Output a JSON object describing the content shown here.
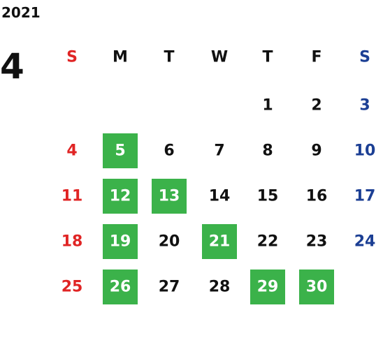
{
  "year": "2021",
  "month": "4",
  "weekdays": [
    "S",
    "M",
    "T",
    "W",
    "T",
    "F",
    "S"
  ],
  "colors": {
    "sunday": "#e02424",
    "saturday": "#1c3f94",
    "weekday": "#111111",
    "highlight": "#3bb24a",
    "highlight_text": "#ffffff"
  },
  "weeks": [
    [
      null,
      null,
      null,
      null,
      {
        "day": 1,
        "highlight": false
      },
      {
        "day": 2,
        "highlight": false
      },
      {
        "day": 3,
        "highlight": false
      }
    ],
    [
      {
        "day": 4,
        "highlight": false
      },
      {
        "day": 5,
        "highlight": true
      },
      {
        "day": 6,
        "highlight": false
      },
      {
        "day": 7,
        "highlight": false
      },
      {
        "day": 8,
        "highlight": false
      },
      {
        "day": 9,
        "highlight": false
      },
      {
        "day": 10,
        "highlight": false
      }
    ],
    [
      {
        "day": 11,
        "highlight": false
      },
      {
        "day": 12,
        "highlight": true
      },
      {
        "day": 13,
        "highlight": true
      },
      {
        "day": 14,
        "highlight": false
      },
      {
        "day": 15,
        "highlight": false
      },
      {
        "day": 16,
        "highlight": false
      },
      {
        "day": 17,
        "highlight": false
      }
    ],
    [
      {
        "day": 18,
        "highlight": false
      },
      {
        "day": 19,
        "highlight": true
      },
      {
        "day": 20,
        "highlight": false
      },
      {
        "day": 21,
        "highlight": true
      },
      {
        "day": 22,
        "highlight": false
      },
      {
        "day": 23,
        "highlight": false
      },
      {
        "day": 24,
        "highlight": false
      }
    ],
    [
      {
        "day": 25,
        "highlight": false
      },
      {
        "day": 26,
        "highlight": true
      },
      {
        "day": 27,
        "highlight": false
      },
      {
        "day": 28,
        "highlight": false
      },
      {
        "day": 29,
        "highlight": true
      },
      {
        "day": 30,
        "highlight": true
      },
      null
    ]
  ]
}
